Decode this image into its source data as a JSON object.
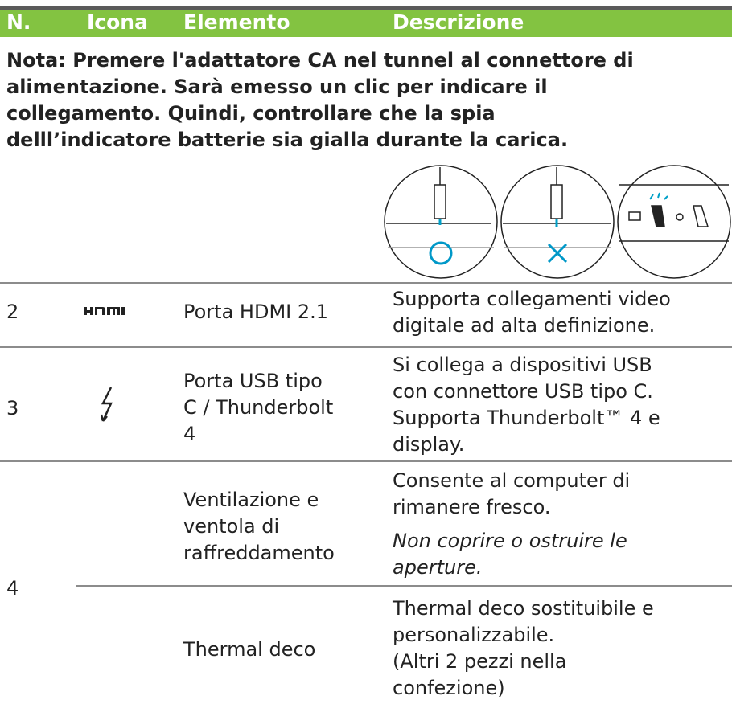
{
  "table": {
    "header": [
      "N.",
      "Icona",
      "Elemento",
      "Descrizione"
    ],
    "note": [
      "Nota: Premere l'adattatore CA nel tunnel al connettore di",
      "alimentazione. Sarà emesso un clic per indicare il",
      "collegamento. Quindi, controllare che la spia",
      "delll’indicatore batterie sia gialla durante la carica."
    ],
    "rows": [
      {
        "number": "2",
        "element": [
          "Porta HDMI 2.1"
        ],
        "description": [
          "Supporta collegamenti video",
          "digitale ad alta definizione."
        ]
      },
      {
        "number": "3",
        "element": [
          "Porta USB tipo",
          "C / Thunderbolt",
          "4"
        ],
        "description": [
          "Si collega a dispositivi USB",
          "con connettore USB tipo C.",
          "Supporta Thunderbolt™ 4 e",
          "display."
        ]
      },
      {
        "number": "4",
        "subrows": [
          {
            "element": [
              "Ventilazione e",
              "ventola di",
              "raffreddamento"
            ],
            "description": [
              "Consente al computer di",
              "rimanere fresco."
            ],
            "note": [
              "Non coprire o ostruire le",
              "aperture."
            ]
          },
          {
            "element": [
              "Thermal deco"
            ],
            "description": [
              "Thermal deco sostituibile e",
              "personalizzabile.",
              "(Altri 2 pezzi nella",
              "confezione)"
            ]
          }
        ]
      }
    ]
  }
}
